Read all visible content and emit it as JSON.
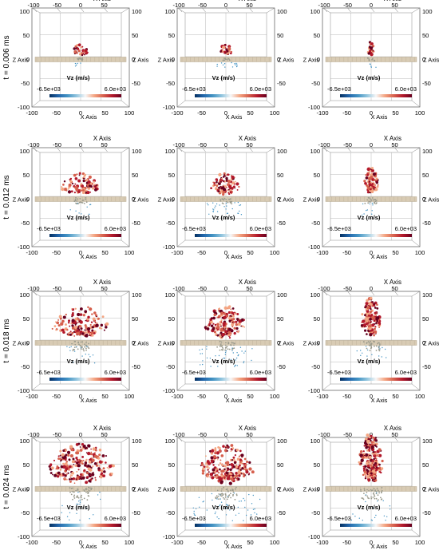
{
  "figure": {
    "row_labels": [
      "t = 0.006 ms",
      "t = 0.012 ms",
      "t = 0.018 ms",
      "t = 0.024 ms"
    ],
    "column_count": 3,
    "axis": {
      "x_title": "X Axis",
      "z_title": "Z Axis",
      "x_top_ticks": [
        "-100",
        "-50",
        "0",
        "50"
      ],
      "x_bottom_ticks": [
        "-100",
        "-50",
        "0",
        "50",
        "100"
      ],
      "y_left_ticks": [
        "100",
        "50",
        "0",
        "-50",
        "-100"
      ],
      "y_right_ticks": [
        "100",
        "50",
        "0",
        "-50"
      ]
    },
    "colorbar": {
      "title": "Vz (m/s)",
      "min_label": "-6.5e+03",
      "max_label": "6.0e+03",
      "colors": [
        "#053061",
        "#2166ac",
        "#4393c3",
        "#92c5de",
        "#f7f7f7",
        "#f4a582",
        "#d6604d",
        "#b2182b",
        "#67001f"
      ]
    },
    "colors": {
      "plate": "#d8cbb4",
      "plate_dark": "#b6a98f",
      "ejecta_red": "#b2182b",
      "ejecta_dark": "#67001f",
      "ejecta_light": "#f4a582",
      "debris_blue": "#4393c3",
      "grid": "#999999"
    }
  }
}
